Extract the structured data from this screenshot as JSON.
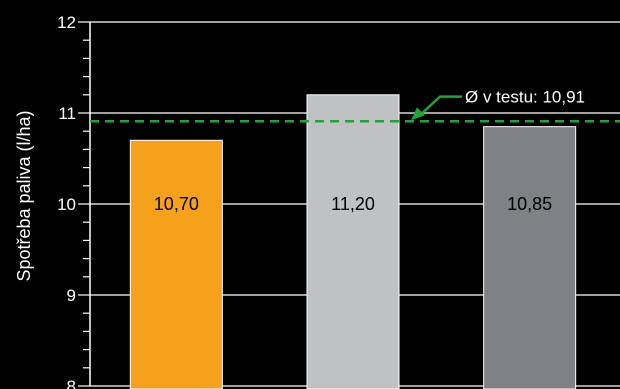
{
  "chart_data": {
    "type": "bar",
    "categories": [
      "",
      "",
      ""
    ],
    "values": [
      10.7,
      11.2,
      10.85
    ],
    "value_labels": [
      "10,70",
      "11,20",
      "10,85"
    ],
    "bar_colors": [
      "#f5a11c",
      "#c0c1c3",
      "#808184"
    ],
    "label_colors": [
      "#000000",
      "#000000",
      "#000000"
    ],
    "ylabel": "Spotřeba paliva (l/ha)",
    "ylim": [
      8,
      12
    ],
    "yticks": [
      8,
      9,
      10,
      11,
      12
    ],
    "ytick_labels": [
      "8",
      "9",
      "10",
      "11",
      "12"
    ],
    "grid": true,
    "reference_line": {
      "value": 10.91,
      "label": "Ø v testu: 10,91",
      "color": "#22a33a",
      "style": "dashed"
    }
  }
}
